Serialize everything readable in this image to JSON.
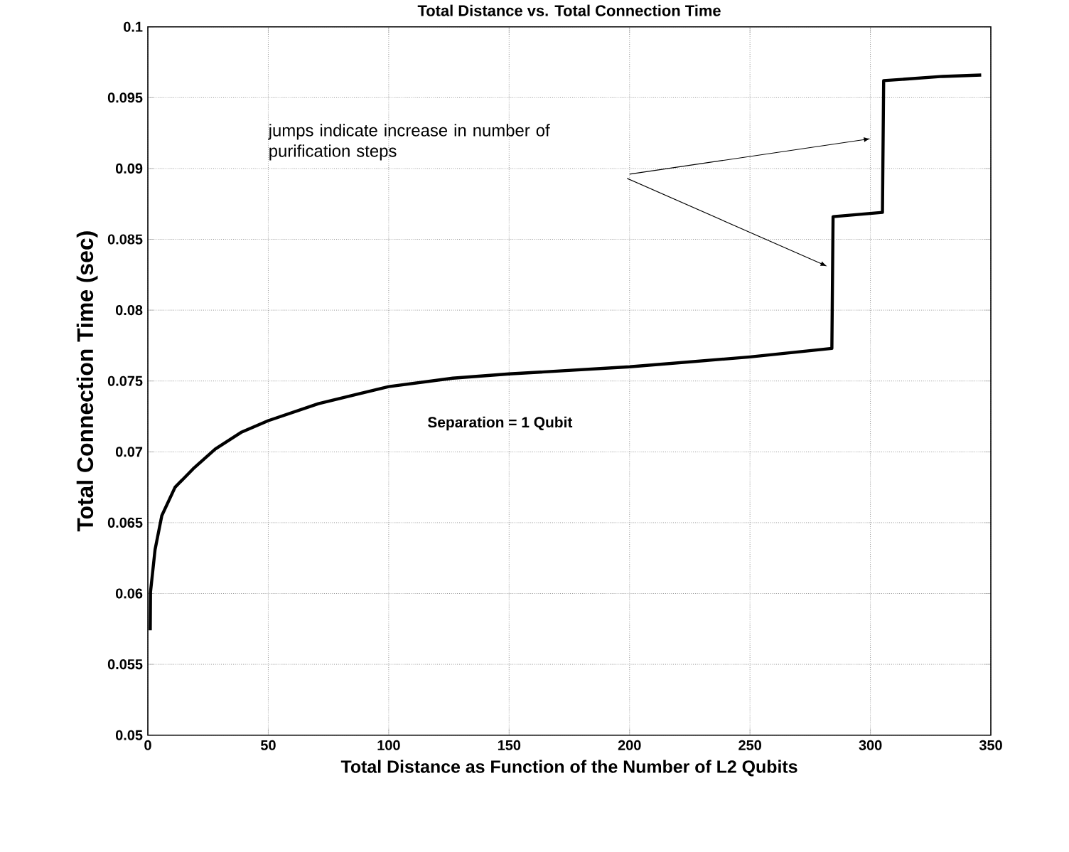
{
  "chart_data": {
    "type": "line",
    "title": "Total Distance vs. Total Connection Time",
    "xlabel": "Total Distance as Function of the Number of L2 Qubits",
    "ylabel": "Total Connection Time (sec)",
    "annotations": [
      "jumps indicate increase in number of purification steps",
      "Separation = 1 Qubit"
    ],
    "series": [
      {
        "color": "#000000",
        "x": [
          1,
          1.1,
          3,
          5.8,
          11.3,
          18.8,
          28,
          39,
          50,
          70.8,
          100,
          126.6,
          150,
          200,
          250,
          284,
          284.5,
          305,
          305.5,
          330,
          346
        ],
        "values": [
          0.0574,
          0.0601,
          0.0631,
          0.0655,
          0.0675,
          0.0688,
          0.0702,
          0.0714,
          0.0722,
          0.0734,
          0.0746,
          0.0752,
          0.0755,
          0.076,
          0.0767,
          0.0773,
          0.0866,
          0.0869,
          0.0962,
          0.0965,
          0.0966
        ]
      }
    ],
    "xlim": [
      0,
      350
    ],
    "ylim": [
      0.05,
      0.1
    ],
    "xticks": [
      0,
      50,
      100,
      150,
      200,
      250,
      300,
      350
    ],
    "yticks": [
      0.05,
      0.055,
      0.06,
      0.065,
      0.07,
      0.075,
      0.08,
      0.085,
      0.09,
      0.095,
      0.1
    ],
    "grid": true,
    "line_style": "solid",
    "marker": "none"
  }
}
